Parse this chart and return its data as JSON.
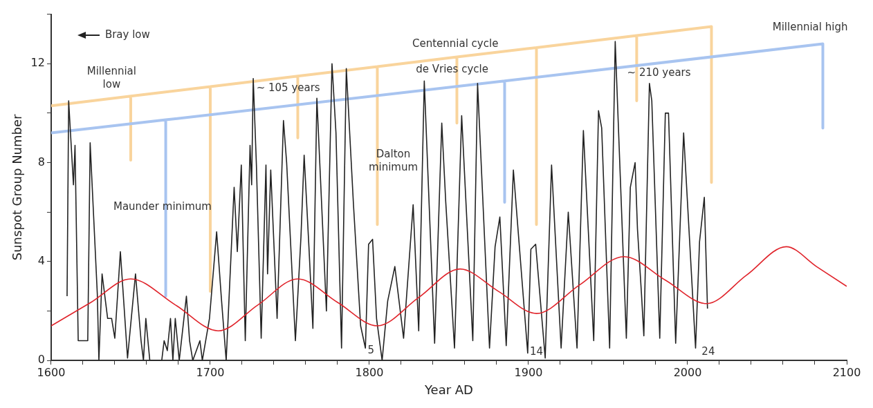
{
  "chart_data": {
    "type": "line",
    "xlabel": "Year AD",
    "ylabel": "Sunspot Group Number",
    "xlim": [
      1600,
      2100
    ],
    "ylim": [
      0,
      14
    ],
    "xticks": [
      1600,
      {
        "value": 1620,
        "label": null
      },
      {
        "value": 1640,
        "label": null
      },
      {
        "value": 1660,
        "label": null
      },
      {
        "value": 1680,
        "label": null
      },
      1700,
      {
        "value": 1720,
        "label": null
      },
      {
        "value": 1740,
        "label": null
      },
      {
        "value": 1760,
        "label": null
      },
      {
        "value": 1780,
        "label": null
      },
      1800,
      {
        "value": 1820,
        "label": null
      },
      {
        "value": 1840,
        "label": null
      },
      {
        "value": 1860,
        "label": null
      },
      {
        "value": 1880,
        "label": null
      },
      1900,
      {
        "value": 1920,
        "label": null
      },
      {
        "value": 1940,
        "label": null
      },
      {
        "value": 1960,
        "label": null
      },
      {
        "value": 1980,
        "label": null
      },
      2000,
      {
        "value": 2020,
        "label": null
      },
      {
        "value": 2040,
        "label": null
      },
      {
        "value": 2060,
        "label": null
      },
      {
        "value": 2080,
        "label": null
      },
      2100
    ],
    "yticks": [
      0,
      {
        "value": 2,
        "label": null
      },
      4,
      {
        "value": 6,
        "label": null
      },
      8,
      {
        "value": 10,
        "label": null
      },
      12,
      {
        "value": 14,
        "label": null
      }
    ],
    "grid": false,
    "legend": false,
    "marker": "none",
    "line_style": "solid",
    "series": [
      {
        "color": "#222222",
        "x": [
          1610,
          1611,
          1614,
          1615,
          1617,
          1623,
          1624.5,
          1629,
          1630,
          1632,
          1635.5,
          1638,
          1640,
          1643.5,
          1648,
          1653,
          1656.5,
          1658,
          1659.5,
          1662,
          1669.5,
          1671,
          1673,
          1675,
          1676.5,
          1678,
          1680.5,
          1685,
          1687,
          1689,
          1693.5,
          1695,
          1699.5,
          1704,
          1707,
          1710,
          1715,
          1717,
          1719.5,
          1722,
          1725,
          1726,
          1727,
          1729,
          1732,
          1735,
          1736,
          1738,
          1742,
          1746,
          1748,
          1753.5,
          1757,
          1759,
          1762,
          1764.5,
          1767,
          1773,
          1776.5,
          1779,
          1782.5,
          1785.5,
          1790,
          1794.5,
          1797.5,
          1799.5,
          1802,
          1804.5,
          1808,
          1811.5,
          1816,
          1821.5,
          1827.5,
          1831,
          1834.5,
          1841,
          1845.5,
          1848,
          1853.5,
          1858,
          1865,
          1868,
          1875.5,
          1879,
          1882,
          1886,
          1890.5,
          1899.5,
          1901.5,
          1904.5,
          1910.5,
          1914.5,
          1920.5,
          1925,
          1930.5,
          1934.5,
          1941,
          1944,
          1946,
          1951,
          1954.5,
          1961.5,
          1964,
          1967,
          1968.5,
          1971,
          1972.5,
          1976,
          1977.5,
          1982.5,
          1986,
          1988,
          1992.5,
          1997.5,
          2005,
          2007.5,
          2010.5,
          2012.5
        ],
        "values": [
          2.6,
          10.5,
          7.1,
          8.7,
          0.8,
          0.8,
          8.8,
          2.7,
          0,
          3.5,
          1.7,
          1.7,
          0.9,
          4.4,
          0.1,
          3.5,
          0.8,
          0,
          1.7,
          0,
          0,
          0.8,
          0.4,
          1.7,
          0,
          1.7,
          0,
          2.6,
          0.8,
          0,
          0.8,
          0,
          1.7,
          5.2,
          2.5,
          0,
          7.0,
          4.4,
          7.9,
          0.8,
          8.7,
          7.1,
          11.4,
          7.9,
          0.9,
          7.9,
          3.5,
          7.7,
          1.7,
          9.7,
          8.0,
          0.8,
          5.0,
          8.3,
          4.6,
          1.3,
          10.6,
          2.0,
          12.0,
          9.2,
          0.5,
          11.8,
          6.3,
          1.4,
          0.5,
          4.7,
          4.9,
          1.7,
          0,
          2.4,
          3.8,
          0.9,
          6.3,
          1.2,
          11.3,
          0.7,
          9.6,
          6.4,
          0.5,
          9.9,
          0.8,
          11.2,
          0.5,
          4.6,
          5.8,
          0.6,
          7.7,
          0.3,
          4.5,
          4.7,
          0.1,
          7.9,
          0.5,
          6.0,
          0.5,
          9.3,
          0.8,
          10.1,
          9.4,
          0.5,
          12.9,
          0.9,
          7.0,
          8.0,
          5.3,
          2.7,
          1.0,
          11.2,
          10.5,
          0.9,
          10.0,
          10.0,
          0.7,
          9.2,
          0.5,
          4.8,
          6.6,
          2.1
        ]
      },
      {
        "color": "#e0242b",
        "x": [
          1600,
          1625,
          1650,
          1678,
          1705,
          1730,
          1755,
          1780,
          1805,
          1831,
          1857,
          1881,
          1905,
          1932,
          1960,
          1986,
          2012,
          2037,
          2062,
          2081,
          2100
        ],
        "values": [
          1.4,
          2.35,
          3.3,
          2.25,
          1.2,
          2.25,
          3.3,
          2.35,
          1.4,
          2.55,
          3.7,
          2.8,
          1.9,
          3.05,
          4.2,
          3.25,
          2.3,
          3.45,
          4.6,
          3.8,
          3.0
        ]
      },
      {
        "color": "#f9d49c",
        "x": [
          1600,
          1650,
          1650,
          1650,
          1700,
          1700,
          1700,
          1755,
          1755,
          1755,
          1805,
          1805,
          1805,
          1855,
          1855,
          1855,
          1905,
          1905,
          1905,
          1968,
          1968,
          1968,
          2015,
          2015
        ],
        "values": [
          10.3,
          10.69,
          8.1,
          10.69,
          11.07,
          2.8,
          11.07,
          11.5,
          9.0,
          11.5,
          11.88,
          5.5,
          11.88,
          12.27,
          9.6,
          12.27,
          12.65,
          5.5,
          12.65,
          13.14,
          10.5,
          13.14,
          13.5,
          7.2
        ]
      },
      {
        "color": "#a8c4f0",
        "x": [
          1600,
          1672,
          1672,
          1672,
          1885,
          1885,
          1885,
          2085,
          2085
        ],
        "values": [
          9.2,
          9.73,
          2.6,
          9.73,
          11.3,
          6.4,
          11.3,
          12.8,
          9.4
        ]
      }
    ],
    "annotations": [
      "Bray low",
      "Millennial\nlow",
      "Maunder minimum",
      "~ 105 years",
      "Centennial cycle",
      "de Vries cycle",
      "Dalton\nminimum",
      "~ 210 years",
      "Millennial high",
      "5",
      "14",
      "24"
    ]
  }
}
